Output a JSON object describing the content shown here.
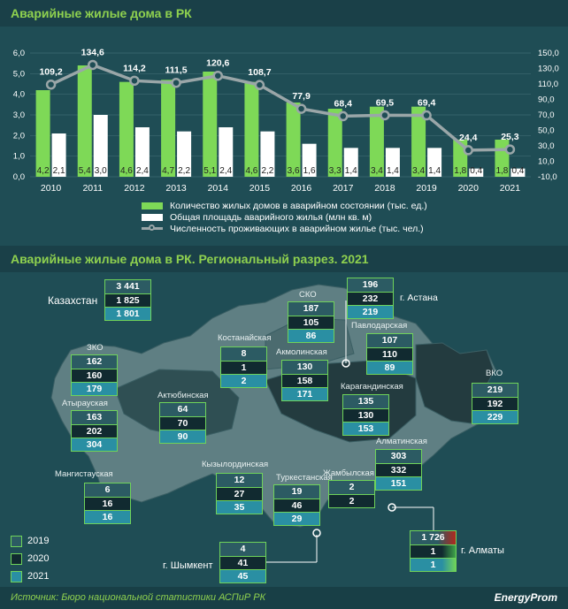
{
  "header1": "Аварийные жилые дома в РК",
  "header2": "Аварийные жилые дома в РК. Региональный разрез. 2021",
  "chart_data": {
    "type": "bar",
    "categories": [
      "2010",
      "2011",
      "2012",
      "2013",
      "2014",
      "2015",
      "2016",
      "2017",
      "2018",
      "2019",
      "2020",
      "2021"
    ],
    "series": [
      {
        "name": "Количество жилых домов в аварийном состоянии (тыс. ед.)",
        "values": [
          4.2,
          5.4,
          4.6,
          4.7,
          5.1,
          4.6,
          3.6,
          3.3,
          3.4,
          3.4,
          1.8,
          1.8
        ],
        "labels": [
          "4,2",
          "5,4",
          "4,6",
          "4,7",
          "5,1",
          "4,6",
          "3,6",
          "3,3",
          "3,4",
          "3,4",
          "1,8",
          "1,8"
        ]
      },
      {
        "name": "Общая площадь аварийного жилья (млн кв. м)",
        "values": [
          2.1,
          3.0,
          2.4,
          2.2,
          2.4,
          2.2,
          1.6,
          1.4,
          1.4,
          1.4,
          0.4,
          0.4
        ],
        "labels": [
          "2,1",
          "3,0",
          "2,4",
          "2,2",
          "2,4",
          "2,2",
          "1,6",
          "1,4",
          "1,4",
          "1,4",
          "0,4",
          "0,4"
        ]
      },
      {
        "name": "Численность проживающих в аварийном жилье (тыс. чел.)",
        "type": "line",
        "axis": "right",
        "values": [
          109.2,
          134.6,
          114.2,
          111.5,
          120.6,
          108.7,
          77.9,
          68.4,
          69.5,
          69.4,
          24.4,
          25.3
        ],
        "labels": [
          "109,2",
          "134,6",
          "114,2",
          "111,5",
          "120,6",
          "108,7",
          "77,9",
          "68,4",
          "69,5",
          "69,4",
          "24,4",
          "25,3"
        ]
      }
    ],
    "y_left": {
      "ticks": [
        "0,0",
        "1,0",
        "2,0",
        "3,0",
        "4,0",
        "5,0",
        "6,0"
      ],
      "ylim": [
        0,
        6
      ]
    },
    "y_right": {
      "ticks": [
        "-10,0",
        "10,0",
        "30,0",
        "50,0",
        "70,0",
        "90,0",
        "110,0",
        "130,0",
        "150,0"
      ],
      "ylim": [
        -10,
        150
      ]
    },
    "colors": {
      "bar1": "#7ed957",
      "bar2": "#ffffff",
      "line": "#9aa6a8"
    }
  },
  "regions": [
    {
      "name": "Казахстан",
      "values": [
        "3 441",
        "1 825",
        "1 801"
      ]
    },
    {
      "name": "СКО",
      "values": [
        "187",
        "105",
        "86"
      ]
    },
    {
      "name": "г. Астана",
      "values": [
        "196",
        "232",
        "219"
      ]
    },
    {
      "name": "Павлодарская",
      "values": [
        "107",
        "110",
        "89"
      ]
    },
    {
      "name": "Костанайская",
      "values": [
        "8",
        "1",
        "2"
      ]
    },
    {
      "name": "Акмолинская",
      "values": [
        "130",
        "158",
        "171"
      ]
    },
    {
      "name": "ЗКО",
      "values": [
        "162",
        "160",
        "179"
      ]
    },
    {
      "name": "Атырауская",
      "values": [
        "163",
        "202",
        "304"
      ]
    },
    {
      "name": "Актюбинская",
      "values": [
        "64",
        "70",
        "90"
      ]
    },
    {
      "name": "Карагандинская",
      "values": [
        "135",
        "130",
        "153"
      ]
    },
    {
      "name": "ВКО",
      "values": [
        "219",
        "192",
        "229"
      ]
    },
    {
      "name": "Алматинская",
      "values": [
        "303",
        "332",
        "151"
      ]
    },
    {
      "name": "Мангистауская",
      "values": [
        "6",
        "16",
        "16"
      ]
    },
    {
      "name": "Кызылординская",
      "values": [
        "12",
        "27",
        "35"
      ]
    },
    {
      "name": "Туркестанская",
      "values": [
        "19",
        "46",
        "29"
      ]
    },
    {
      "name": "Жамбылская",
      "values": [
        "2",
        "2",
        ""
      ]
    },
    {
      "name": "г. Шымкент",
      "values": [
        "4",
        "41",
        "45"
      ]
    },
    {
      "name": "г. Алматы",
      "values": [
        "1 726",
        "1",
        "1"
      ]
    }
  ],
  "year_legend": [
    "2019",
    "2020",
    "2021"
  ],
  "source": "Источник: Бюро национальной статистики АСПиР РК",
  "brand": "EnergyProm"
}
